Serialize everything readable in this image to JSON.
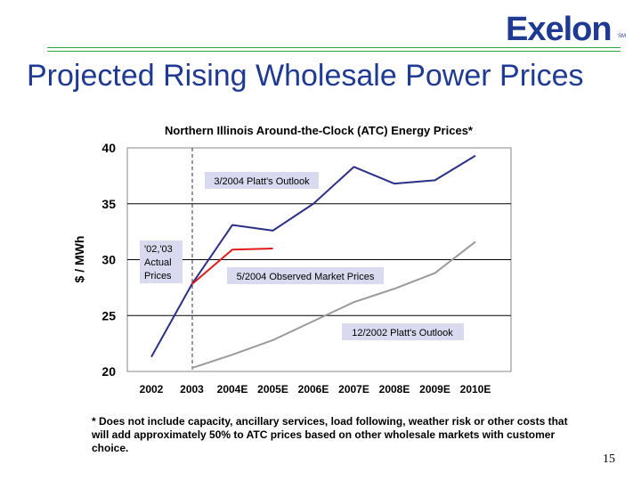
{
  "header": {
    "logo_text": "Exelon",
    "logo_tm": "SM",
    "title": "Projected Rising Wholesale Power Prices"
  },
  "chart_data": {
    "type": "line",
    "title": "Northern Illinois Around-the-Clock (ATC) Energy Prices*",
    "ylabel": "$ / MWh",
    "xlabel": "",
    "categories": [
      "2002",
      "2003",
      "2004E",
      "2005E",
      "2006E",
      "2007E",
      "2008E",
      "2009E",
      "2010E"
    ],
    "ylim": [
      20,
      40
    ],
    "yticks": [
      20,
      25,
      30,
      35,
      40
    ],
    "grid": true,
    "series": [
      {
        "name": "3/2004 Platt's Outlook",
        "color": "#2b2f86",
        "values": [
          21.3,
          27.8,
          33.1,
          32.6,
          35.0,
          38.3,
          36.8,
          37.1,
          39.3
        ]
      },
      {
        "name": "5/2004 Observed Market Prices",
        "color": "#e21a1a",
        "values": [
          null,
          27.8,
          30.9,
          31.0,
          null,
          null,
          null,
          null,
          null
        ]
      },
      {
        "name": "12/2002 Platt's Outlook",
        "color": "#9a9a9a",
        "values": [
          null,
          20.3,
          21.5,
          22.8,
          24.5,
          26.2,
          27.4,
          28.8,
          31.6
        ]
      }
    ],
    "annotations": [
      "'02,'03",
      "Actual",
      "Prices"
    ]
  },
  "footnote": "* Does not include capacity, ancillary services, load following, weather risk or other costs that will add approximately 50% to ATC prices based on other wholesale markets with customer choice.",
  "page_number": "15"
}
